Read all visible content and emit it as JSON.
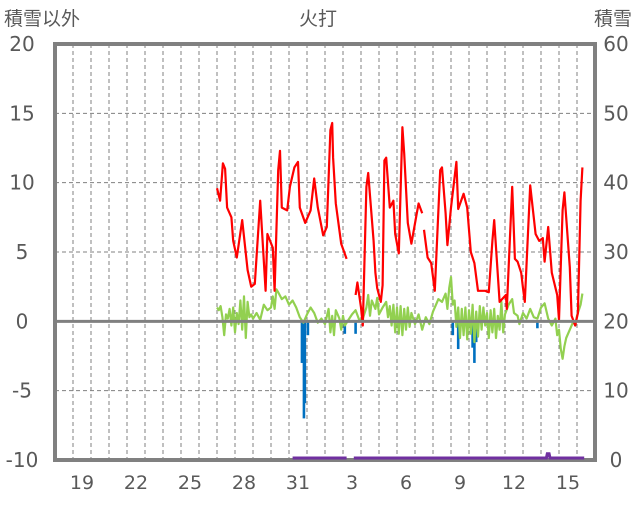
{
  "chart_data": {
    "type": "line",
    "title": "火打",
    "ylabel_left": "積雪以外",
    "ylabel_right": "積雪",
    "ylim_left": [
      -10,
      20
    ],
    "ylim_right": [
      0,
      60
    ],
    "yticks_left": [
      "20",
      "15",
      "10",
      "5",
      "0",
      "-5",
      "-10"
    ],
    "yticks_left_values": [
      20,
      15,
      10,
      5,
      0,
      -5,
      -10
    ],
    "yticks_right": [
      "60",
      "50",
      "40",
      "30",
      "20",
      "10",
      "0"
    ],
    "yticks_right_values": [
      60,
      50,
      40,
      30,
      20,
      10,
      0
    ],
    "xlim_days": [
      0,
      30
    ],
    "xticks": [
      {
        "label": "19",
        "x": 1.5
      },
      {
        "label": "22",
        "x": 4.5
      },
      {
        "label": "25",
        "x": 7.5
      },
      {
        "label": "28",
        "x": 10.5
      },
      {
        "label": "31",
        "x": 13.5
      },
      {
        "label": "3",
        "x": 16.5
      },
      {
        "label": "6",
        "x": 19.5
      },
      {
        "label": "9",
        "x": 22.5
      },
      {
        "label": "12",
        "x": 25.5
      },
      {
        "label": "15",
        "x": 28.5
      }
    ],
    "grid": true,
    "colors": {
      "red": "#ff0000",
      "green": "#92d050",
      "blue": "#0070c0",
      "purple": "#7030a0",
      "axis": "#808080",
      "grid": "#808080"
    },
    "red_series": [
      [
        [
          9.0,
          9.6
        ],
        [
          9.17,
          8.7
        ],
        [
          9.33,
          11.4
        ],
        [
          9.45,
          11.0
        ],
        [
          9.56,
          8.2
        ],
        [
          9.8,
          7.5
        ],
        [
          9.9,
          5.8
        ],
        [
          10.1,
          4.6
        ],
        [
          10.4,
          7.3
        ],
        [
          10.7,
          3.7
        ],
        [
          10.9,
          2.5
        ],
        [
          11.1,
          2.7
        ],
        [
          11.4,
          8.7
        ],
        [
          11.7,
          2.2
        ],
        [
          11.8,
          6.3
        ],
        [
          12.1,
          5.3
        ],
        [
          12.2,
          2.2
        ],
        [
          12.4,
          10.9
        ],
        [
          12.5,
          12.3
        ],
        [
          12.6,
          8.2
        ],
        [
          12.9,
          8.0
        ],
        [
          13.05,
          9.7
        ],
        [
          13.3,
          11.1
        ],
        [
          13.5,
          11.5
        ],
        [
          13.6,
          8.2
        ],
        [
          13.9,
          7.1
        ],
        [
          14.2,
          8.0
        ],
        [
          14.4,
          10.3
        ],
        [
          14.6,
          8.2
        ],
        [
          14.9,
          6.2
        ],
        [
          15.1,
          6.8
        ],
        [
          15.3,
          13.8
        ],
        [
          15.4,
          14.3
        ],
        [
          15.45,
          11.8
        ],
        [
          15.6,
          8.5
        ],
        [
          15.9,
          5.6
        ],
        [
          16.2,
          4.5
        ]
      ],
      [
        [
          16.7,
          1.9
        ],
        [
          16.8,
          2.8
        ],
        [
          17.0,
          1.0
        ],
        [
          17.1,
          -0.3
        ],
        [
          17.3,
          9.7
        ],
        [
          17.4,
          10.7
        ],
        [
          17.7,
          5.8
        ],
        [
          17.8,
          3.5
        ],
        [
          17.9,
          2.4
        ],
        [
          18.1,
          1.4
        ],
        [
          18.2,
          2.6
        ],
        [
          18.3,
          11.6
        ],
        [
          18.4,
          11.8
        ],
        [
          18.6,
          8.2
        ],
        [
          18.8,
          8.7
        ],
        [
          18.9,
          6.3
        ],
        [
          19.1,
          4.9
        ],
        [
          19.3,
          14.0
        ],
        [
          19.4,
          12.1
        ],
        [
          19.6,
          7.1
        ],
        [
          19.8,
          5.6
        ],
        [
          20.1,
          7.8
        ],
        [
          20.2,
          8.5
        ],
        [
          20.4,
          7.8
        ]
      ],
      [
        [
          20.5,
          6.6
        ],
        [
          20.7,
          4.6
        ],
        [
          20.9,
          4.2
        ],
        [
          21.1,
          2.2
        ],
        [
          21.4,
          10.9
        ],
        [
          21.5,
          11.1
        ],
        [
          21.7,
          7.8
        ],
        [
          21.8,
          5.5
        ],
        [
          22.0,
          8.2
        ],
        [
          22.3,
          11.5
        ],
        [
          22.4,
          8.1
        ],
        [
          22.7,
          9.2
        ],
        [
          22.9,
          8.2
        ],
        [
          23.1,
          5.0
        ],
        [
          23.3,
          4.2
        ],
        [
          23.5,
          2.2
        ],
        [
          23.9,
          2.2
        ],
        [
          24.1,
          2.1
        ],
        [
          24.3,
          5.8
        ],
        [
          24.4,
          7.3
        ],
        [
          24.7,
          1.4
        ],
        [
          25.05,
          1.9
        ],
        [
          25.1,
          0.9
        ],
        [
          25.4,
          9.7
        ],
        [
          25.55,
          4.5
        ],
        [
          25.7,
          4.3
        ],
        [
          25.9,
          3.5
        ],
        [
          26.0,
          2.4
        ],
        [
          26.1,
          1.4
        ],
        [
          26.4,
          9.8
        ],
        [
          26.7,
          6.3
        ],
        [
          26.9,
          5.8
        ],
        [
          27.1,
          6.0
        ],
        [
          27.2,
          4.3
        ],
        [
          27.4,
          6.8
        ],
        [
          27.6,
          3.5
        ],
        [
          27.9,
          1.9
        ],
        [
          28.0,
          0.1
        ],
        [
          28.2,
          8.0
        ],
        [
          28.3,
          9.3
        ],
        [
          28.6,
          3.9
        ],
        [
          28.7,
          0.4
        ],
        [
          28.9,
          -0.3
        ],
        [
          29.05,
          0.6
        ],
        [
          29.2,
          8.7
        ],
        [
          29.3,
          11.1
        ]
      ]
    ],
    "green_series": [
      [
        9.0,
        1.0
      ],
      [
        9.1,
        0.8
      ],
      [
        9.2,
        1.1
      ],
      [
        9.3,
        0.3
      ],
      [
        9.4,
        -1.0
      ],
      [
        9.5,
        0.5
      ],
      [
        9.6,
        0.2
      ],
      [
        9.7,
        0.9
      ],
      [
        9.8,
        -0.3
      ],
      [
        9.9,
        1.0
      ],
      [
        10.0,
        -0.8
      ],
      [
        10.1,
        0.6
      ],
      [
        10.2,
        -0.2
      ],
      [
        10.3,
        1.5
      ],
      [
        10.4,
        -0.6
      ],
      [
        10.5,
        1.8
      ],
      [
        10.6,
        -1.2
      ],
      [
        10.7,
        1.4
      ],
      [
        10.8,
        0.3
      ],
      [
        10.9,
        0.5
      ],
      [
        11.0,
        0.2
      ],
      [
        11.2,
        0.6
      ],
      [
        11.4,
        0.1
      ],
      [
        11.6,
        1.2
      ],
      [
        11.8,
        0.8
      ],
      [
        12.0,
        1.0
      ],
      [
        12.1,
        1.8
      ],
      [
        12.2,
        0.9
      ],
      [
        12.3,
        2.3
      ],
      [
        12.4,
        2.1
      ],
      [
        12.6,
        1.6
      ],
      [
        12.8,
        1.8
      ],
      [
        13.0,
        1.2
      ],
      [
        13.2,
        1.5
      ],
      [
        13.4,
        1.0
      ],
      [
        13.6,
        0.3
      ],
      [
        13.8,
        -0.1
      ],
      [
        14.0,
        0.5
      ],
      [
        14.2,
        1.0
      ],
      [
        14.4,
        0.6
      ],
      [
        14.6,
        -0.1
      ],
      [
        14.8,
        0.2
      ],
      [
        15.0,
        -0.2
      ],
      [
        15.2,
        0.9
      ],
      [
        15.3,
        -0.8
      ],
      [
        15.4,
        0.4
      ],
      [
        15.5,
        -1.0
      ],
      [
        15.6,
        0.8
      ],
      [
        15.8,
        0.2
      ],
      [
        15.9,
        -0.6
      ],
      [
        16.0,
        0.4
      ],
      [
        16.1,
        -0.3
      ],
      [
        16.5,
        0.5
      ],
      [
        16.7,
        0.8
      ],
      [
        16.9,
        0.1
      ],
      [
        17.1,
        0.2
      ],
      [
        17.3,
        1.0
      ],
      [
        17.4,
        1.9
      ],
      [
        17.5,
        0.4
      ],
      [
        17.6,
        1.5
      ],
      [
        17.8,
        0.9
      ],
      [
        17.9,
        1.7
      ],
      [
        18.0,
        0.5
      ],
      [
        18.2,
        1.0
      ],
      [
        18.4,
        1.4
      ],
      [
        18.5,
        0.3
      ],
      [
        18.6,
        1.1
      ],
      [
        18.7,
        -0.3
      ],
      [
        18.8,
        1.2
      ],
      [
        18.9,
        -0.8
      ],
      [
        19.0,
        1.0
      ],
      [
        19.1,
        -0.9
      ],
      [
        19.2,
        1.1
      ],
      [
        19.3,
        -1.0
      ],
      [
        19.4,
        0.9
      ],
      [
        19.5,
        -0.6
      ],
      [
        19.6,
        1.0
      ],
      [
        19.7,
        -0.4
      ],
      [
        19.8,
        0.6
      ],
      [
        20.0,
        -0.2
      ],
      [
        20.2,
        0.5
      ],
      [
        20.4,
        -0.6
      ],
      [
        20.6,
        0.3
      ],
      [
        20.8,
        -0.2
      ],
      [
        21.0,
        0.7
      ],
      [
        21.2,
        1.3
      ],
      [
        21.3,
        1.6
      ],
      [
        21.5,
        1.4
      ],
      [
        21.7,
        2.0
      ],
      [
        21.8,
        0.9
      ],
      [
        21.9,
        2.4
      ],
      [
        22.0,
        3.2
      ],
      [
        22.1,
        1.2
      ],
      [
        22.2,
        1.5
      ],
      [
        22.3,
        -0.4
      ],
      [
        22.4,
        1.0
      ],
      [
        22.5,
        -1.2
      ],
      [
        22.6,
        0.9
      ],
      [
        22.7,
        -1.0
      ],
      [
        22.8,
        1.0
      ],
      [
        22.9,
        -1.3
      ],
      [
        23.0,
        0.8
      ],
      [
        23.1,
        -0.9
      ],
      [
        23.2,
        1.2
      ],
      [
        23.3,
        -1.5
      ],
      [
        23.4,
        0.7
      ],
      [
        23.5,
        -1.1
      ],
      [
        23.6,
        1.1
      ],
      [
        23.7,
        -0.6
      ],
      [
        23.8,
        1.0
      ],
      [
        23.9,
        -0.3
      ],
      [
        24.0,
        0.6
      ],
      [
        24.1,
        -1.2
      ],
      [
        24.2,
        0.8
      ],
      [
        24.3,
        -0.8
      ],
      [
        24.4,
        0.9
      ],
      [
        24.5,
        -1.2
      ],
      [
        24.6,
        0.4
      ],
      [
        24.7,
        -0.6
      ],
      [
        24.8,
        1.4
      ],
      [
        24.9,
        -0.8
      ],
      [
        25.0,
        0.5
      ],
      [
        25.2,
        1.2
      ],
      [
        25.4,
        1.6
      ],
      [
        25.5,
        0.6
      ],
      [
        25.7,
        0.4
      ],
      [
        25.8,
        -0.2
      ],
      [
        26.0,
        0.6
      ],
      [
        26.2,
        0.2
      ],
      [
        26.4,
        0.9
      ],
      [
        26.6,
        0.3
      ],
      [
        26.8,
        0.2
      ],
      [
        27.0,
        1.0
      ],
      [
        27.2,
        1.3
      ],
      [
        27.4,
        0.2
      ],
      [
        27.6,
        -0.3
      ],
      [
        27.8,
        0.2
      ],
      [
        27.9,
        -1.0
      ],
      [
        28.0,
        -0.6
      ],
      [
        28.1,
        -2.0
      ],
      [
        28.2,
        -2.7
      ],
      [
        28.3,
        -1.8
      ],
      [
        28.4,
        -1.2
      ],
      [
        28.6,
        -0.6
      ],
      [
        28.8,
        0.0
      ],
      [
        28.9,
        -0.3
      ],
      [
        29.0,
        0.4
      ],
      [
        29.1,
        0.8
      ],
      [
        29.2,
        1.2
      ],
      [
        29.3,
        2.0
      ]
    ],
    "blue_bars": [
      [
        13.72,
        -3.0
      ],
      [
        13.78,
        -3.0
      ],
      [
        13.83,
        -7.0
      ],
      [
        13.88,
        -5.9
      ],
      [
        14.05,
        -1.0
      ],
      [
        16.1,
        -0.9
      ],
      [
        16.7,
        -0.9
      ],
      [
        22.1,
        -1.0
      ],
      [
        22.4,
        -2.0
      ],
      [
        23.2,
        -1.9
      ],
      [
        23.3,
        -3.0
      ],
      [
        23.4,
        -1.5
      ],
      [
        26.8,
        -0.5
      ]
    ],
    "purple_series": [
      [
        [
          13.2,
          0
        ],
        [
          16.2,
          0
        ]
      ],
      [
        [
          16.6,
          0
        ],
        [
          27.3,
          0
        ],
        [
          27.35,
          0.6
        ],
        [
          27.45,
          0.6
        ],
        [
          27.5,
          0
        ],
        [
          29.4,
          0
        ]
      ]
    ]
  }
}
